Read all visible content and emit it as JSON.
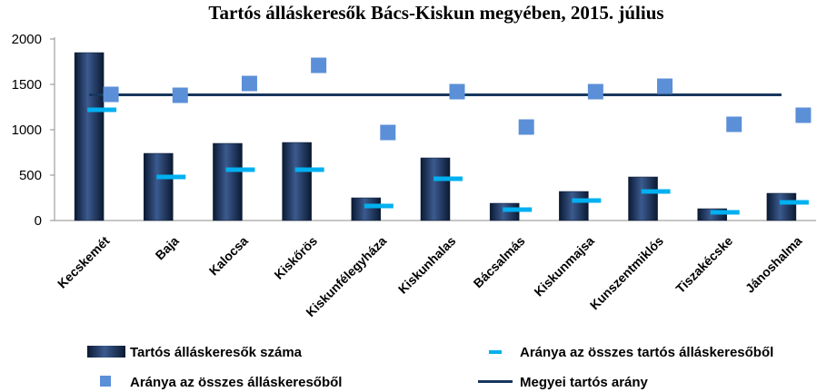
{
  "chart_data": {
    "type": "bar",
    "title": "Tartós álláskeresők Bács-Kiskun megyében, 2015. július",
    "xlabel": "",
    "ylabel": "",
    "ylim": [
      0,
      2000
    ],
    "yticks": [
      "2000",
      "1500",
      "1000",
      "500",
      "0"
    ],
    "grid": false,
    "legend_position": "bottom",
    "categories": [
      "Kecskemét",
      "Baja",
      "Kalocsa",
      "Kiskőrös",
      "Kiskunfélegyháza",
      "Kiskunhalas",
      "Bácsalmás",
      "Kiskunmajsa",
      "Kunszentmiklós",
      "Tiszakécske",
      "Jánoshalma"
    ],
    "series": [
      {
        "name": "Tartós álláskeresők száma",
        "kind": "bar",
        "color": "#1f3864",
        "values": [
          1850,
          740,
          850,
          860,
          250,
          690,
          190,
          320,
          480,
          130,
          300
        ]
      },
      {
        "name": "Aránya az összes tartós álláskeresőből",
        "kind": "dash",
        "color": "#00b0f0",
        "values": [
          1220,
          480,
          560,
          560,
          160,
          460,
          120,
          220,
          320,
          90,
          200
        ]
      },
      {
        "name": "Aránya az összes álláskeresőből",
        "kind": "square",
        "color": "#5b8fd8",
        "values": [
          1390,
          1380,
          1510,
          1710,
          970,
          1420,
          1030,
          1420,
          1480,
          1060,
          1160
        ]
      },
      {
        "name": "Megyei tartós arány",
        "kind": "line",
        "color": "#17375e",
        "values": [
          1385,
          1385,
          1385,
          1385,
          1385,
          1385,
          1385,
          1385,
          1385,
          1385,
          1385
        ]
      }
    ]
  }
}
